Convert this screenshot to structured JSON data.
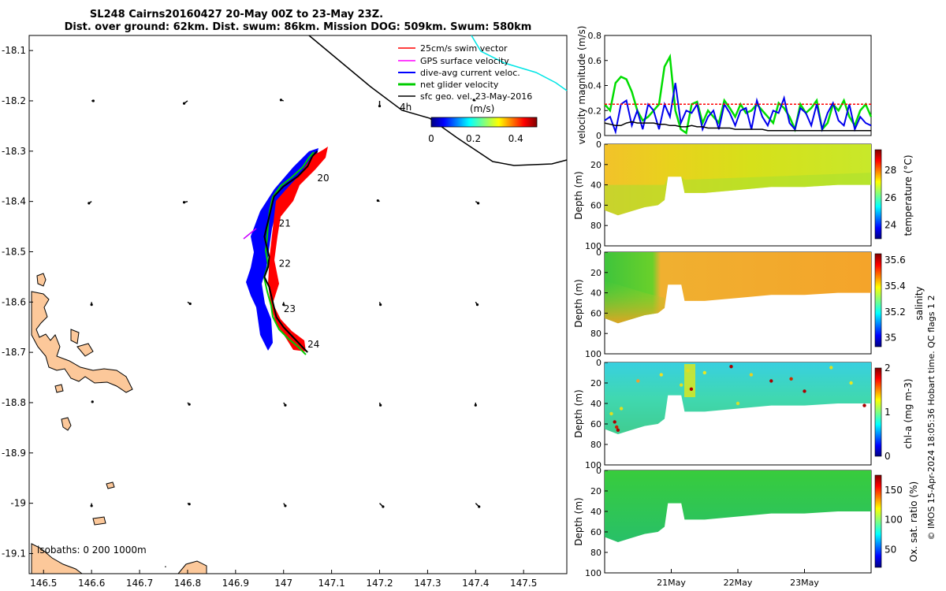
{
  "title": {
    "line1": "SL248 Cairns20160427 20-May 00Z to 23-May 23Z.",
    "line2": "Dist. over ground: 62km. Dist. swum: 86km. Mission DOG: 509km. Swum: 580km"
  },
  "credit": "© IMOS 15-Apr-2024 18:05:36 Hobart time. QC flags 1 2",
  "chart_data": [
    {
      "type": "map",
      "x_ticks": [
        "146.5",
        "146.6",
        "146.7",
        "146.8",
        "146.9",
        "147",
        "147.1",
        "147.2",
        "147.3",
        "147.4",
        "147.5"
      ],
      "x_values": [
        146.5,
        146.6,
        146.7,
        146.8,
        146.9,
        147.0,
        147.1,
        147.2,
        147.3,
        147.4,
        147.5
      ],
      "y_ticks": [
        "-18.1",
        "-18.2",
        "-18.3",
        "-18.4",
        "-18.5",
        "-18.6",
        "-18.7",
        "-18.8",
        "-18.9",
        "-19",
        "-19.1"
      ],
      "y_values": [
        -18.1,
        -18.2,
        -18.3,
        -18.4,
        -18.5,
        -18.6,
        -18.7,
        -18.8,
        -18.9,
        -19.0,
        -19.1
      ],
      "xlim": [
        146.47,
        147.59
      ],
      "ylim": [
        -19.14,
        -18.07
      ],
      "legend": [
        {
          "label": "25cm/s swim vector",
          "color": "#ff0000"
        },
        {
          "label": "GPS surface velocity",
          "color": "#ff00ff"
        },
        {
          "label": "dive-avg current veloc.",
          "color": "#0000ff"
        },
        {
          "label": "net glider velocity",
          "color": "#00cc00"
        },
        {
          "label": "sfc geo. vel. 23-May-2016",
          "color": "#000000"
        }
      ],
      "colorbar": {
        "unit": "(m/s)",
        "ticks": [
          "0",
          "0.2",
          "0.4"
        ],
        "range": [
          0,
          0.5
        ]
      },
      "contour_label": "4h",
      "isobath_text": "isobaths: 0   200  1000m",
      "track_day_labels": [
        {
          "text": "20",
          "lon": 147.07,
          "lat": -18.36
        },
        {
          "text": "21",
          "lon": 146.99,
          "lat": -18.45
        },
        {
          "text": "22",
          "lon": 146.99,
          "lat": -18.53
        },
        {
          "text": "23",
          "lon": 147.0,
          "lat": -18.62
        },
        {
          "text": "24",
          "lon": 147.05,
          "lat": -18.69
        }
      ],
      "track": [
        [
          147.07,
          -18.3
        ],
        [
          147.06,
          -18.31
        ],
        [
          147.05,
          -18.33
        ],
        [
          147.03,
          -18.35
        ],
        [
          147.0,
          -18.37
        ],
        [
          146.98,
          -18.39
        ],
        [
          146.975,
          -18.41
        ],
        [
          146.97,
          -18.43
        ],
        [
          146.965,
          -18.45
        ],
        [
          146.96,
          -18.47
        ],
        [
          146.965,
          -18.49
        ],
        [
          146.97,
          -18.51
        ],
        [
          146.968,
          -18.53
        ],
        [
          146.96,
          -18.55
        ],
        [
          146.97,
          -18.57
        ],
        [
          146.975,
          -18.59
        ],
        [
          146.98,
          -18.61
        ],
        [
          146.985,
          -18.63
        ],
        [
          147.0,
          -18.65
        ],
        [
          147.02,
          -18.67
        ],
        [
          147.04,
          -18.69
        ],
        [
          147.05,
          -18.7
        ]
      ],
      "flow_vectors": [
        {
          "lon": 146.6,
          "lat": -18.2,
          "u": 0.02,
          "v": 0.0
        },
        {
          "lon": 146.8,
          "lat": -18.2,
          "u": -0.04,
          "v": -0.03
        },
        {
          "lon": 147.0,
          "lat": -18.2,
          "u": -0.03,
          "v": 0.01
        },
        {
          "lon": 147.2,
          "lat": -18.2,
          "u": 0.0,
          "v": -0.06
        },
        {
          "lon": 147.4,
          "lat": -18.2,
          "u": -0.02,
          "v": 0.01
        },
        {
          "lon": 146.6,
          "lat": -18.4,
          "u": -0.03,
          "v": -0.02
        },
        {
          "lon": 146.8,
          "lat": -18.4,
          "u": -0.04,
          "v": -0.01
        },
        {
          "lon": 147.0,
          "lat": -18.4,
          "u": -0.02,
          "v": 0.0
        },
        {
          "lon": 147.2,
          "lat": -18.4,
          "u": -0.02,
          "v": 0.01
        },
        {
          "lon": 147.4,
          "lat": -18.4,
          "u": 0.03,
          "v": -0.02
        },
        {
          "lon": 146.6,
          "lat": -18.6,
          "u": 0.0,
          "v": -0.03
        },
        {
          "lon": 146.8,
          "lat": -18.6,
          "u": 0.03,
          "v": -0.02
        },
        {
          "lon": 147.0,
          "lat": -18.6,
          "u": 0.0,
          "v": -0.03
        },
        {
          "lon": 147.2,
          "lat": -18.6,
          "u": 0.01,
          "v": -0.03
        },
        {
          "lon": 147.4,
          "lat": -18.6,
          "u": 0.02,
          "v": -0.03
        },
        {
          "lon": 146.6,
          "lat": -18.8,
          "u": 0.01,
          "v": 0.01
        },
        {
          "lon": 146.8,
          "lat": -18.8,
          "u": 0.02,
          "v": -0.02
        },
        {
          "lon": 147.0,
          "lat": -18.8,
          "u": 0.02,
          "v": -0.03
        },
        {
          "lon": 147.2,
          "lat": -18.8,
          "u": 0.01,
          "v": -0.03
        },
        {
          "lon": 147.4,
          "lat": -18.8,
          "u": 0.0,
          "v": -0.03
        },
        {
          "lon": 146.6,
          "lat": -19.0,
          "u": 0.0,
          "v": -0.03
        },
        {
          "lon": 146.8,
          "lat": -19.0,
          "u": 0.02,
          "v": -0.01
        },
        {
          "lon": 147.0,
          "lat": -19.0,
          "u": 0.02,
          "v": -0.03
        },
        {
          "lon": 147.2,
          "lat": -19.0,
          "u": 0.04,
          "v": -0.04
        },
        {
          "lon": 147.4,
          "lat": -19.0,
          "u": 0.04,
          "v": -0.04
        }
      ]
    },
    {
      "type": "line",
      "ylabel": "velocity magnitude (m/s)",
      "ylim": [
        0,
        0.8
      ],
      "y_ticks": [
        "0",
        "0.2",
        "0.4",
        "0.6",
        "0.8"
      ],
      "xlim": [
        20.0,
        24.0
      ],
      "series": [
        {
          "color": "#00dd00",
          "values": [
            0.25,
            0.2,
            0.42,
            0.47,
            0.45,
            0.35,
            0.2,
            0.12,
            0.15,
            0.2,
            0.25,
            0.55,
            0.63,
            0.2,
            0.05,
            0.02,
            0.25,
            0.27,
            0.1,
            0.2,
            0.15,
            0.1,
            0.28,
            0.22,
            0.15,
            0.25,
            0.18,
            0.2,
            0.25,
            0.2,
            0.15,
            0.1,
            0.26,
            0.22,
            0.15,
            0.05,
            0.25,
            0.18,
            0.22,
            0.28,
            0.05,
            0.1,
            0.25,
            0.2,
            0.28,
            0.15,
            0.08,
            0.2,
            0.25,
            0.15
          ]
        },
        {
          "color": "#0000ee",
          "values": [
            0.12,
            0.15,
            0.03,
            0.25,
            0.28,
            0.08,
            0.2,
            0.05,
            0.25,
            0.2,
            0.05,
            0.25,
            0.15,
            0.42,
            0.1,
            0.2,
            0.18,
            0.25,
            0.05,
            0.15,
            0.2,
            0.05,
            0.25,
            0.18,
            0.08,
            0.2,
            0.22,
            0.05,
            0.28,
            0.15,
            0.08,
            0.2,
            0.18,
            0.3,
            0.1,
            0.05,
            0.22,
            0.18,
            0.08,
            0.25,
            0.05,
            0.18,
            0.26,
            0.12,
            0.08,
            0.25,
            0.05,
            0.15,
            0.1,
            0.08
          ]
        },
        {
          "color": "#000000",
          "values": [
            0.1,
            0.09,
            0.08,
            0.08,
            0.1,
            0.11,
            0.1,
            0.1,
            0.1,
            0.1,
            0.09,
            0.09,
            0.08,
            0.08,
            0.07,
            0.07,
            0.08,
            0.07,
            0.07,
            0.06,
            0.06,
            0.06,
            0.06,
            0.06,
            0.05,
            0.05,
            0.05,
            0.05,
            0.05,
            0.05,
            0.04,
            0.04,
            0.04,
            0.04,
            0.04,
            0.04,
            0.04,
            0.04,
            0.04,
            0.04,
            0.04,
            0.04,
            0.04,
            0.04,
            0.04,
            0.04,
            0.04,
            0.04,
            0.04,
            0.04
          ]
        },
        {
          "color": "#ff0000",
          "values": [
            0.25,
            0.25,
            0.25,
            0.25,
            0.25,
            0.25,
            0.25,
            0.25,
            0.25,
            0.25,
            0.25,
            0.25,
            0.25,
            0.25,
            0.25,
            0.25,
            0.25,
            0.25,
            0.25,
            0.25,
            0.25,
            0.25,
            0.25,
            0.25,
            0.25,
            0.25,
            0.25,
            0.25,
            0.25,
            0.25,
            0.25,
            0.25,
            0.25,
            0.25,
            0.25,
            0.25,
            0.25,
            0.25,
            0.25,
            0.25,
            0.25,
            0.25,
            0.25,
            0.25,
            0.25,
            0.25,
            0.25,
            0.25,
            0.25,
            0.25
          ]
        }
      ]
    },
    {
      "type": "heatmap",
      "variable": "temperature",
      "ylabel": "Depth (m)",
      "clabel": "temperature (°C)",
      "c_ticks": [
        "24",
        "26",
        "28"
      ],
      "c_values": [
        24,
        26,
        28
      ],
      "crange": [
        23,
        29.5
      ],
      "ylim": [
        0,
        100
      ],
      "y_ticks": [
        "0",
        "20",
        "40",
        "60",
        "80",
        "100"
      ],
      "profile": [
        [
          20.0,
          22,
          27.4
        ],
        [
          20.4,
          20,
          27.3
        ],
        [
          20.8,
          18,
          27.2
        ],
        [
          21.0,
          20,
          27.0
        ],
        [
          21.2,
          35,
          26.9
        ],
        [
          21.4,
          38,
          26.8
        ],
        [
          22.0,
          30,
          26.7
        ],
        [
          22.6,
          35,
          26.7
        ],
        [
          23.0,
          35,
          26.6
        ],
        [
          23.5,
          42,
          26.6
        ],
        [
          24.0,
          42,
          26.5
        ]
      ],
      "depth_max": [
        [
          20.0,
          65
        ],
        [
          20.2,
          70
        ],
        [
          20.4,
          66
        ],
        [
          20.6,
          62
        ],
        [
          20.8,
          60
        ],
        [
          20.9,
          55
        ],
        [
          20.95,
          32
        ],
        [
          21.15,
          32
        ],
        [
          21.2,
          48
        ],
        [
          21.5,
          48
        ],
        [
          22.0,
          45
        ],
        [
          22.5,
          42
        ],
        [
          23.0,
          42
        ],
        [
          23.5,
          40
        ],
        [
          24.0,
          40
        ]
      ]
    },
    {
      "type": "heatmap",
      "variable": "salinity",
      "ylabel": "Depth (m)",
      "clabel": "salinity",
      "c_ticks": [
        "35",
        "35.2",
        "35.4",
        "35.6"
      ],
      "c_values": [
        35.0,
        35.2,
        35.4,
        35.6
      ],
      "crange": [
        34.93,
        35.65
      ],
      "ylim": [
        0,
        100
      ],
      "y_ticks": [
        "0",
        "20",
        "40",
        "60",
        "80",
        "100"
      ],
      "depth_max": [
        [
          20.0,
          65
        ],
        [
          20.2,
          70
        ],
        [
          20.4,
          66
        ],
        [
          20.6,
          62
        ],
        [
          20.8,
          60
        ],
        [
          20.9,
          55
        ],
        [
          20.95,
          32
        ],
        [
          21.15,
          32
        ],
        [
          21.2,
          48
        ],
        [
          21.5,
          48
        ],
        [
          22.0,
          45
        ],
        [
          22.5,
          42
        ],
        [
          23.0,
          42
        ],
        [
          23.5,
          40
        ],
        [
          24.0,
          40
        ]
      ]
    },
    {
      "type": "heatmap",
      "variable": "chl-a",
      "ylabel": "Depth (m)",
      "clabel": "chl-a (mg m-3)",
      "c_ticks": [
        "0",
        "1",
        "2"
      ],
      "c_values": [
        0,
        1,
        2
      ],
      "crange": [
        0,
        2
      ],
      "ylim": [
        0,
        100
      ],
      "y_ticks": [
        "0",
        "20",
        "40",
        "60",
        "80",
        "100"
      ],
      "depth_max": [
        [
          20.0,
          65
        ],
        [
          20.2,
          70
        ],
        [
          20.4,
          66
        ],
        [
          20.6,
          62
        ],
        [
          20.8,
          60
        ],
        [
          20.9,
          55
        ],
        [
          20.95,
          32
        ],
        [
          21.15,
          32
        ],
        [
          21.2,
          48
        ],
        [
          21.5,
          48
        ],
        [
          22.0,
          45
        ],
        [
          22.5,
          42
        ],
        [
          23.0,
          42
        ],
        [
          23.5,
          40
        ],
        [
          24.0,
          40
        ]
      ]
    },
    {
      "type": "heatmap",
      "variable": "oxygen",
      "ylabel": "Depth (m)",
      "clabel": "Ox. sat. ratio (%)",
      "c_ticks": [
        "50",
        "100",
        "150"
      ],
      "c_values": [
        50,
        100,
        150
      ],
      "crange": [
        20,
        175
      ],
      "ylim": [
        0,
        100
      ],
      "y_ticks": [
        "0",
        "20",
        "40",
        "60",
        "80",
        "100"
      ],
      "x_ticks": [
        "21May",
        "22May",
        "23May"
      ],
      "x_values": [
        21.0,
        22.0,
        23.0
      ],
      "xlim": [
        20.0,
        24.0
      ],
      "depth_max": [
        [
          20.0,
          65
        ],
        [
          20.2,
          70
        ],
        [
          20.4,
          66
        ],
        [
          20.6,
          62
        ],
        [
          20.8,
          60
        ],
        [
          20.9,
          55
        ],
        [
          20.95,
          32
        ],
        [
          21.15,
          32
        ],
        [
          21.2,
          48
        ],
        [
          21.5,
          48
        ],
        [
          22.0,
          45
        ],
        [
          22.5,
          42
        ],
        [
          23.0,
          42
        ],
        [
          23.5,
          40
        ],
        [
          24.0,
          40
        ]
      ]
    }
  ]
}
